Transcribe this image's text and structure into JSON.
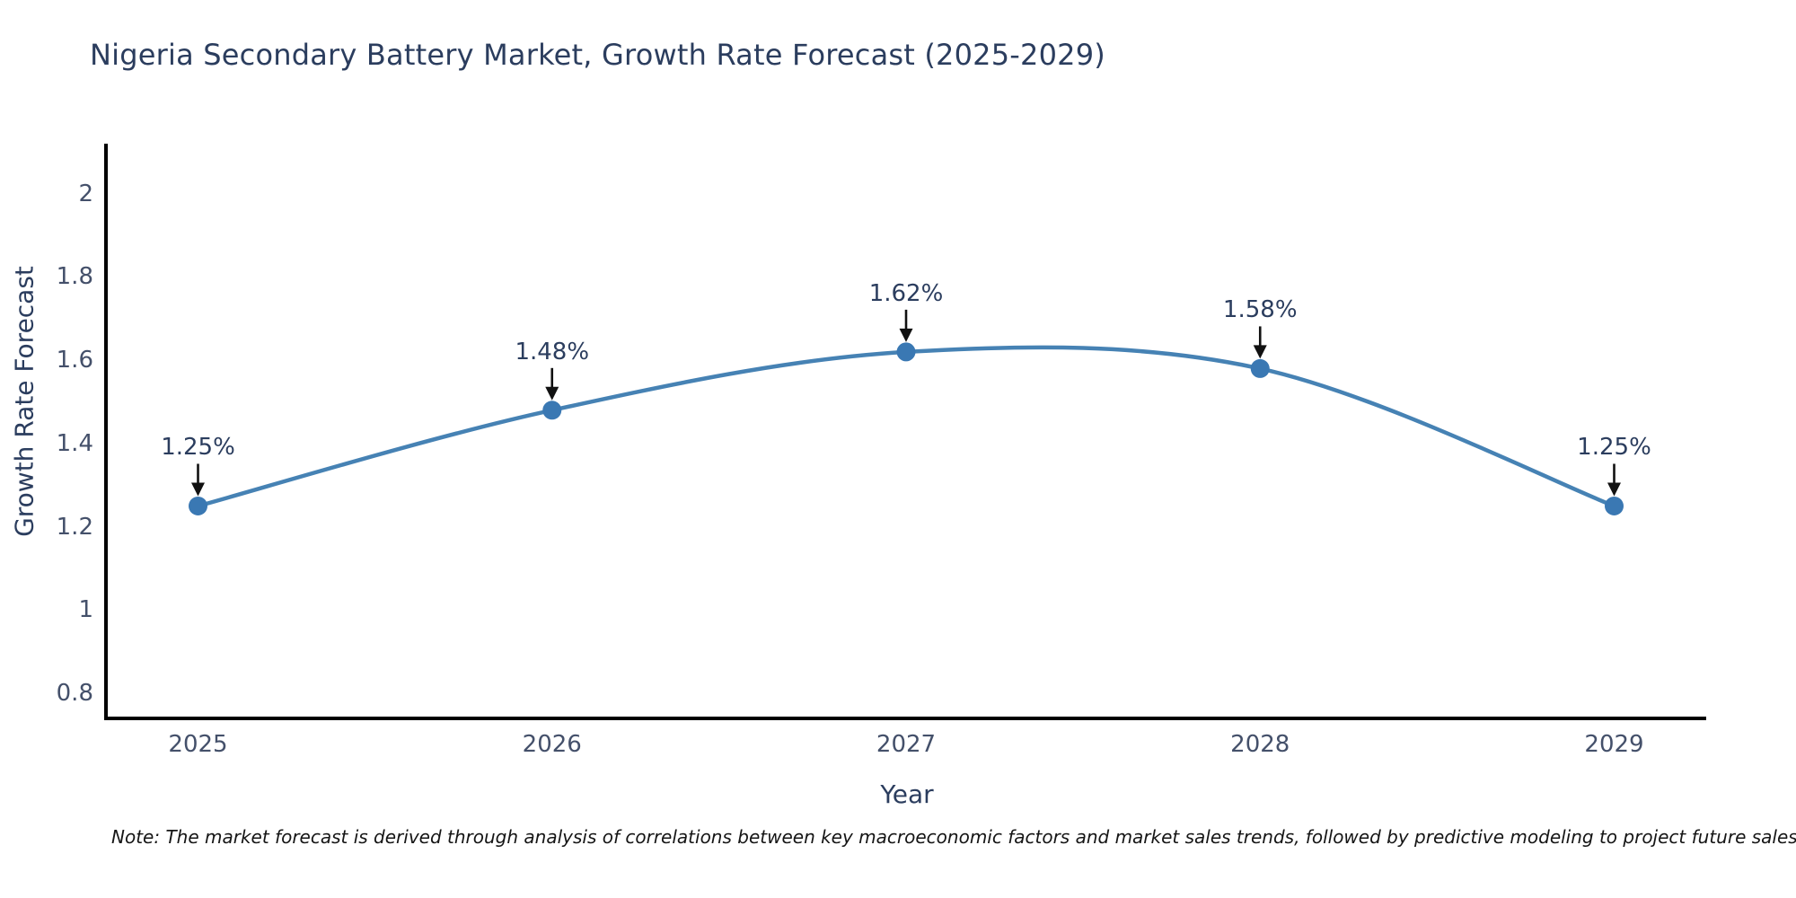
{
  "chart_data": {
    "type": "line",
    "title": "Nigeria Secondary Battery Market, Growth Rate Forecast (2025-2029)",
    "xlabel": "Year",
    "ylabel": "Growth Rate Forecast",
    "x": [
      2025,
      2026,
      2027,
      2028,
      2029
    ],
    "series": [
      {
        "name": "Growth Rate Forecast",
        "values": [
          1.25,
          1.48,
          1.62,
          1.58,
          1.25
        ]
      }
    ],
    "point_labels": [
      "1.25%",
      "1.48%",
      "1.62%",
      "1.58%",
      "1.25%"
    ],
    "x_tick_labels": [
      "2025",
      "2026",
      "2027",
      "2028",
      "2029"
    ],
    "y_tick_labels": [
      "0.8",
      "1",
      "1.2",
      "1.4",
      "1.6",
      "1.8",
      "2"
    ],
    "y_tick_values": [
      0.8,
      1.0,
      1.2,
      1.4,
      1.6,
      1.8,
      2.0
    ],
    "xlim": [
      2024.74,
      2029.26
    ],
    "ylim": [
      0.74,
      2.12
    ],
    "grid": false,
    "legend": "none",
    "line_shape": "spline",
    "colors": {
      "line": "#4682b4",
      "marker": "#3a78b3",
      "axis": "#000000",
      "title_text": "#2b3d5e",
      "tick_text": "#44506a",
      "annotation_arrow": "#111111"
    }
  },
  "note": {
    "text": "Note: The market forecast is derived through analysis of correlations between key macroeconomic factors and market sales trends, followed by predictive modeling to project future sales"
  }
}
